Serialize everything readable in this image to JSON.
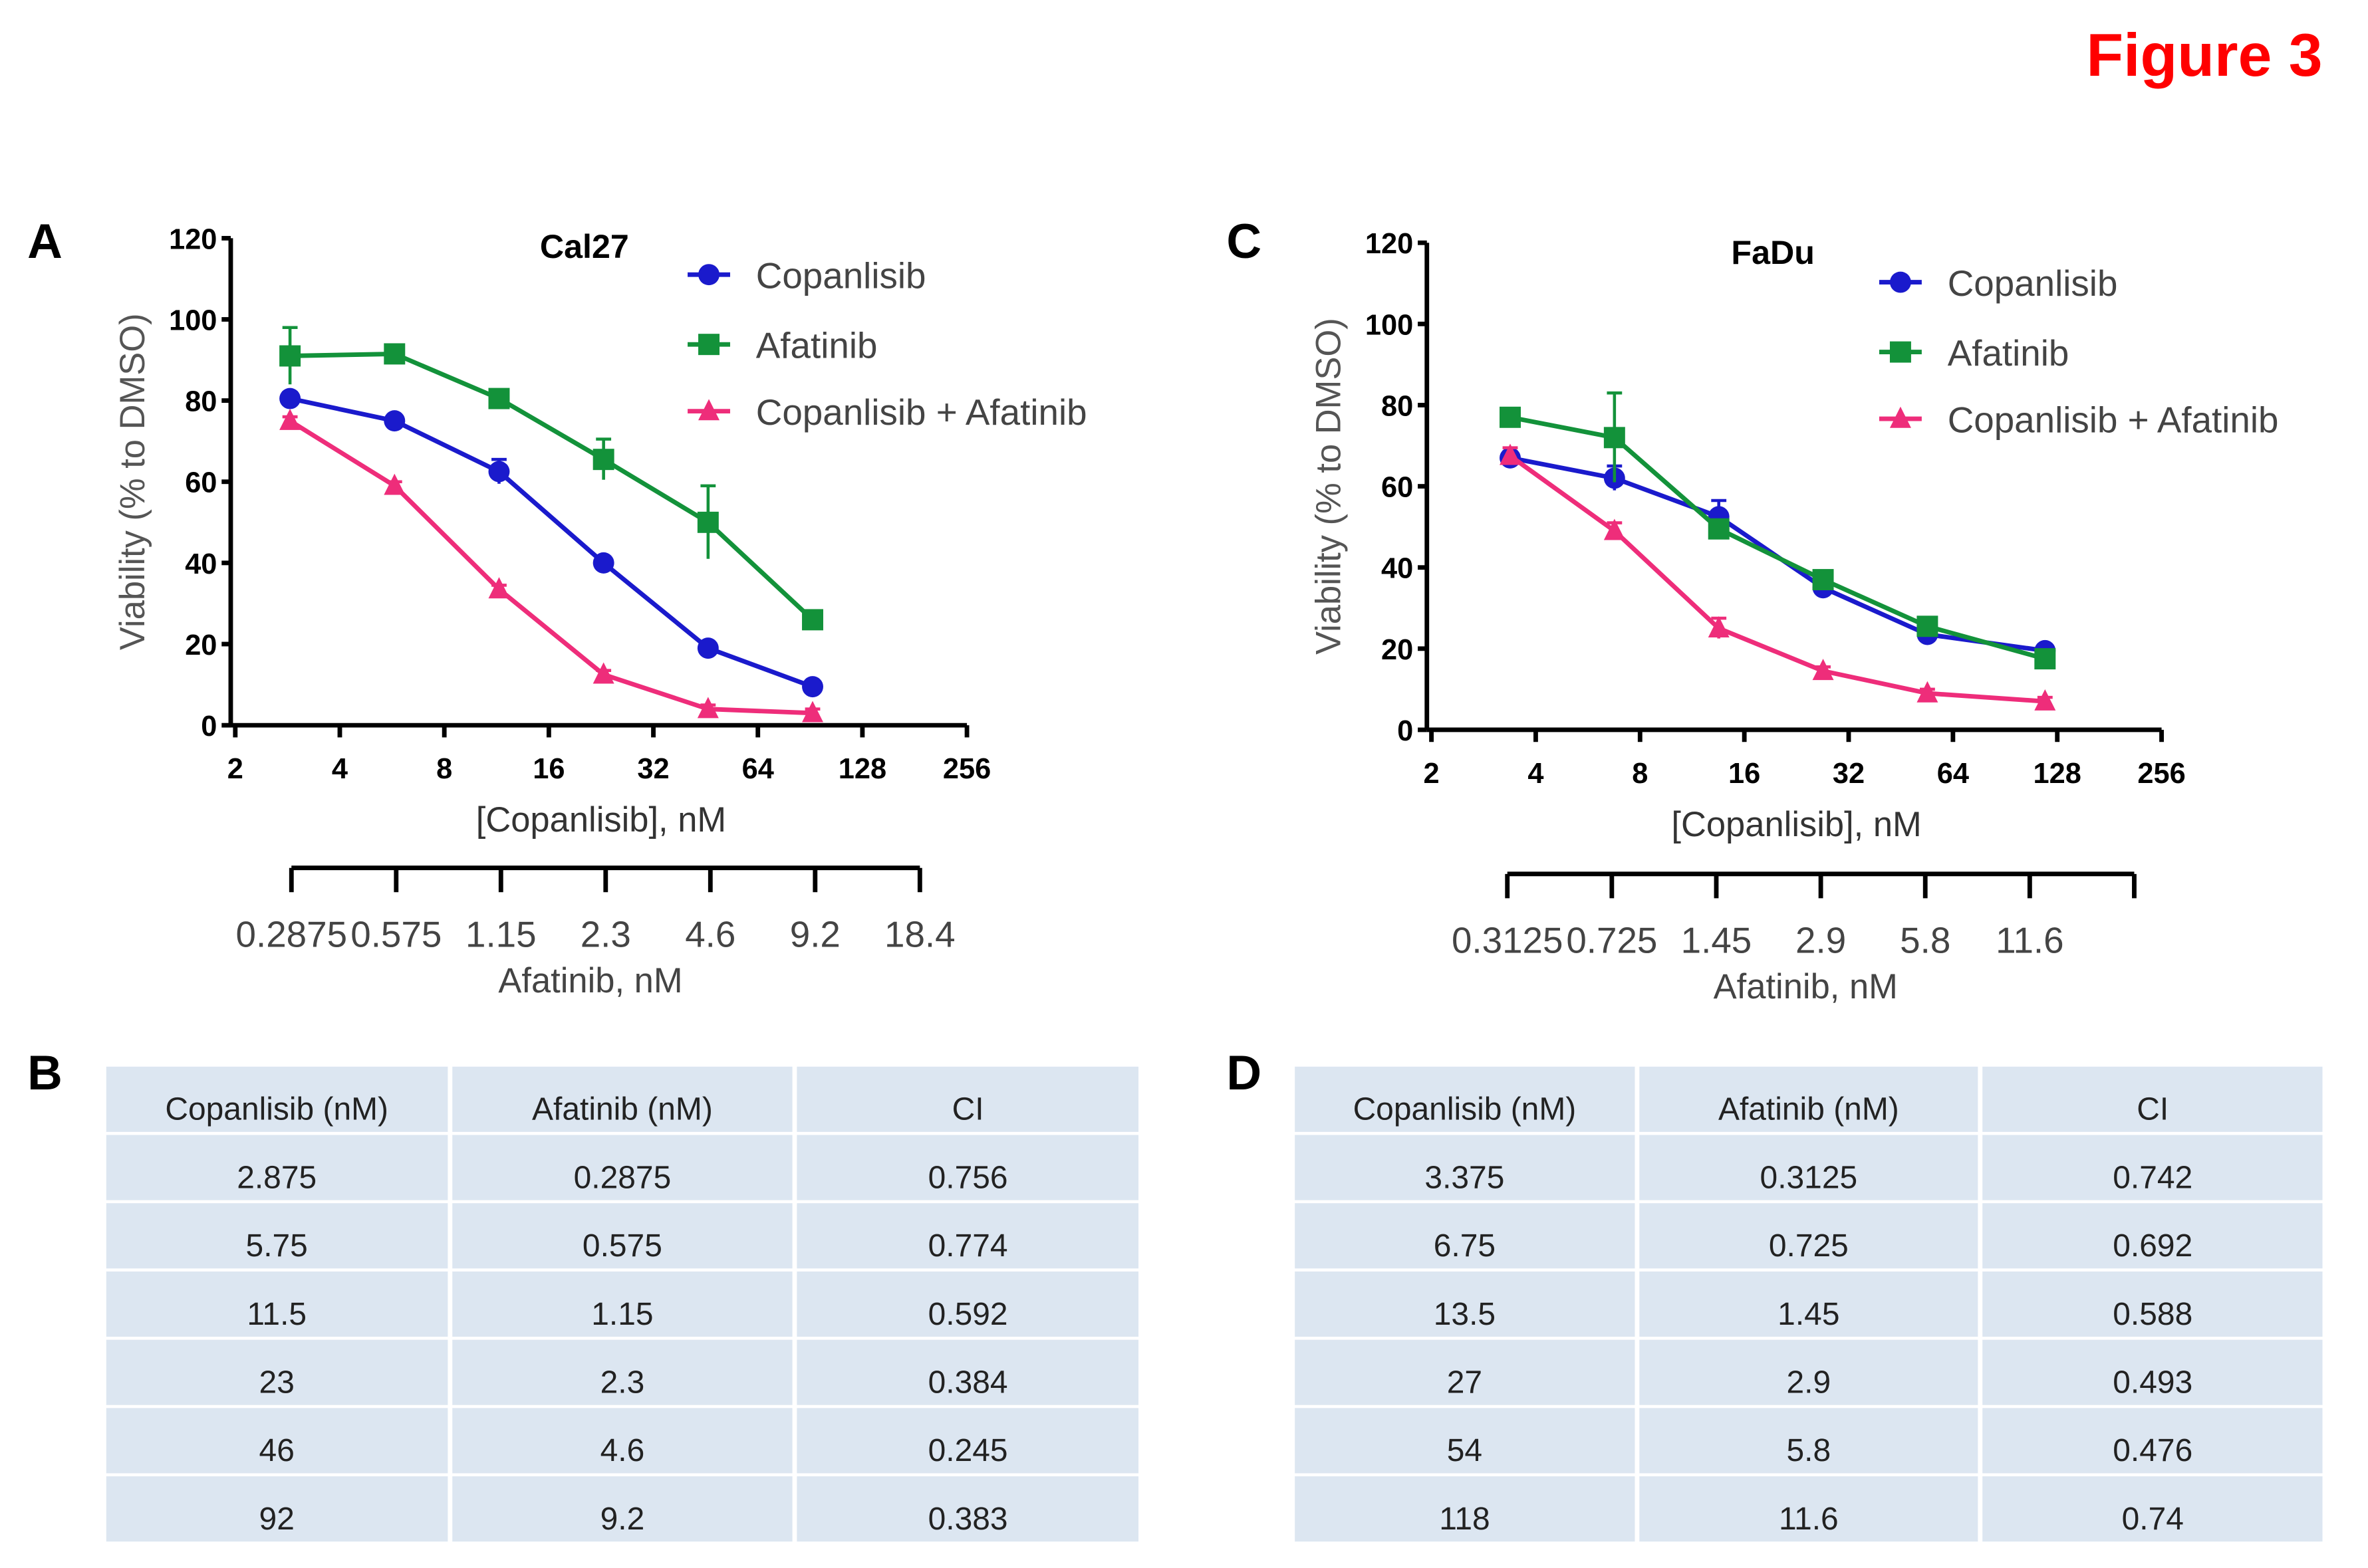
{
  "figure_title": "Figure 3",
  "panel_labels": {
    "a": "A",
    "b": "B",
    "c": "C",
    "d": "D"
  },
  "chart_data": [
    {
      "type": "line",
      "title": "Cal27",
      "xlabel": "[Copanlisib],  nM",
      "ylabel": "Viability (% to DMSO)",
      "x_scale": "log2",
      "xlim": [
        2,
        256
      ],
      "ylim": [
        0,
        120
      ],
      "xticks": [
        "2",
        "4",
        "8",
        "16",
        "32",
        "64",
        "128",
        "256"
      ],
      "yticks": [
        "0",
        "20",
        "40",
        "60",
        "80",
        "100",
        "120"
      ],
      "legend": "top-right",
      "x": [
        2.875,
        5.75,
        11.5,
        23,
        46,
        92
      ],
      "series": [
        {
          "name": "Copanlisib",
          "color": "#1a1acc",
          "marker": "circle",
          "values": [
            80.5,
            75,
            62.5,
            40,
            19,
            9.5
          ],
          "errors": [
            1.5,
            1,
            3,
            1,
            1,
            1
          ]
        },
        {
          "name": "Afatinib",
          "color": "#13923a",
          "marker": "square",
          "values": [
            91,
            91.5,
            80.5,
            65.5,
            50,
            26
          ],
          "errors": [
            7,
            1,
            2,
            5,
            9,
            2
          ]
        },
        {
          "name": "Copanlisib + Afatinib",
          "color": "#ee2d7a",
          "marker": "triangle",
          "values": [
            75,
            59,
            33.5,
            12.5,
            4,
            3
          ],
          "errors": [
            1,
            1,
            1,
            1,
            1,
            1
          ]
        }
      ],
      "secondary_axis": {
        "label": "Afatinib, nM",
        "ticks": [
          "0.2875",
          "0.575",
          "1.15",
          "2.3",
          "4.6",
          "9.2",
          "18.4"
        ]
      }
    },
    {
      "type": "line",
      "title": "FaDu",
      "xlabel": "[Copanlisib],  nM",
      "ylabel": "Viability (% to DMSO)",
      "x_scale": "log2",
      "xlim": [
        2,
        256
      ],
      "ylim": [
        0,
        120
      ],
      "xticks": [
        "2",
        "4",
        "8",
        "16",
        "32",
        "64",
        "128",
        "256"
      ],
      "yticks": [
        "0",
        "20",
        "40",
        "60",
        "80",
        "100",
        "120"
      ],
      "legend": "top-right",
      "x": [
        3.375,
        6.75,
        13.5,
        27,
        54,
        118
      ],
      "series": [
        {
          "name": "Copanlisib",
          "color": "#1a1acc",
          "marker": "circle",
          "values": [
            67,
            62,
            52.5,
            35,
            23.5,
            19.5
          ],
          "errors": [
            1.5,
            3,
            4,
            1,
            1,
            1
          ]
        },
        {
          "name": "Afatinib",
          "color": "#13923a",
          "marker": "square",
          "values": [
            77,
            72,
            49.5,
            37,
            25.5,
            17.5
          ],
          "errors": [
            2,
            11,
            2,
            1,
            1,
            1
          ]
        },
        {
          "name": "Copanlisib + Afatinib",
          "color": "#ee2d7a",
          "marker": "triangle",
          "values": [
            67.5,
            49,
            25,
            14.5,
            9,
            7
          ],
          "errors": [
            2,
            2,
            2.5,
            1,
            1,
            1
          ]
        }
      ],
      "secondary_axis": {
        "label": "Afatinib, nM",
        "ticks": [
          "0.3125",
          "0.725",
          "1.45",
          "2.9",
          "5.8",
          "11.6",
          ""
        ]
      }
    }
  ],
  "tables": [
    {
      "headers": [
        "Copanlisib (nM)",
        "Afatinib  (nM)",
        "CI"
      ],
      "rows": [
        [
          "2.875",
          "0.2875",
          "0.756"
        ],
        [
          "5.75",
          "0.575",
          "0.774"
        ],
        [
          "11.5",
          "1.15",
          "0.592"
        ],
        [
          "23",
          "2.3",
          "0.384"
        ],
        [
          "46",
          "4.6",
          "0.245"
        ],
        [
          "92",
          "9.2",
          "0.383"
        ]
      ]
    },
    {
      "headers": [
        "Copanlisib (nM)",
        "Afatinib  (nM)",
        "CI"
      ],
      "rows": [
        [
          "3.375",
          "0.3125",
          "0.742"
        ],
        [
          "6.75",
          "0.725",
          "0.692"
        ],
        [
          "13.5",
          "1.45",
          "0.588"
        ],
        [
          "27",
          "2.9",
          "0.493"
        ],
        [
          "54",
          "5.8",
          "0.476"
        ],
        [
          "118",
          "11.6",
          "0.74"
        ]
      ]
    }
  ]
}
